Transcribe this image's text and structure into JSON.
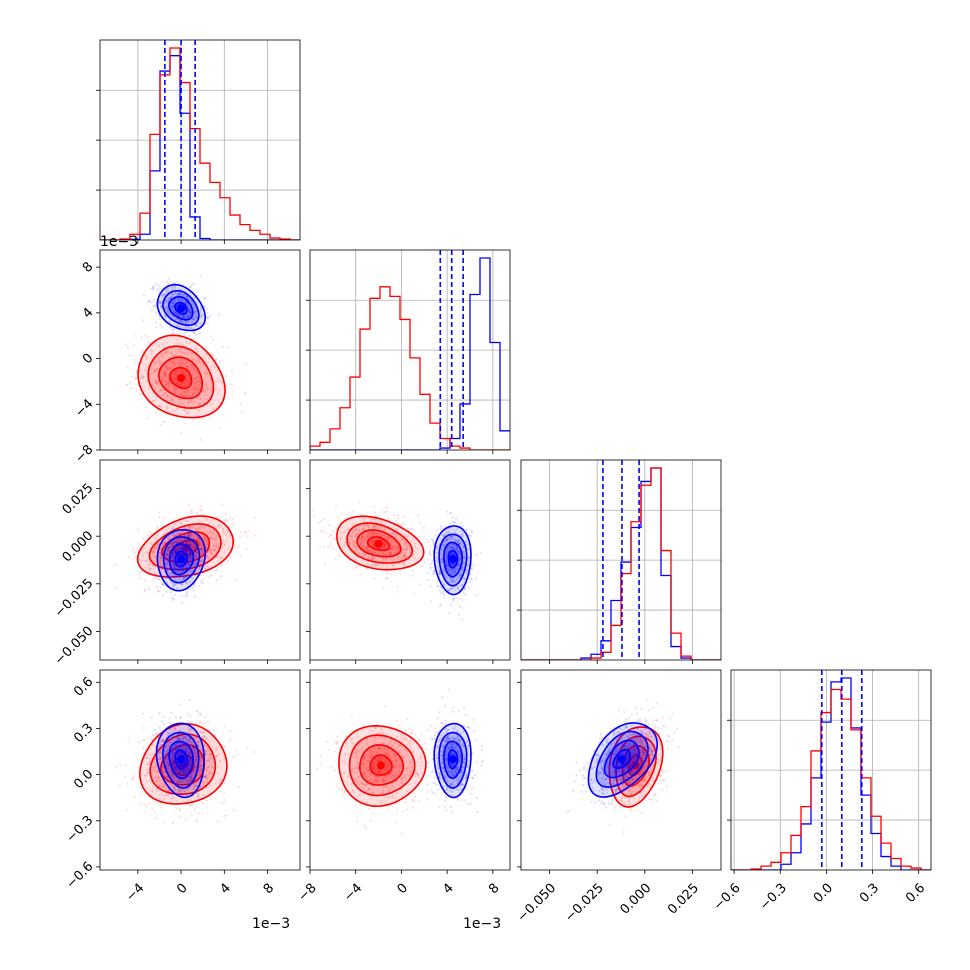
{
  "chart_data": {
    "type": "corner",
    "colors": {
      "blue": "#0000ff",
      "red": "#ff0000",
      "grid": "#b0b0b0"
    },
    "grid": true,
    "offset_texts": [
      "1e−3",
      "1e−3",
      "1e−3"
    ],
    "axes": [
      {
        "range": [
          -7.5,
          11
        ],
        "ticks": [
          -4,
          0,
          4,
          8
        ],
        "tick_labels": [
          "−4",
          "0",
          "4",
          "8"
        ]
      },
      {
        "range": [
          -8,
          9.5
        ],
        "ticks": [
          -8,
          -4,
          0,
          4,
          8
        ],
        "tick_labels": [
          "−8",
          "−4",
          "0",
          "4",
          "8"
        ]
      },
      {
        "range": [
          -0.065,
          0.04
        ],
        "ticks": [
          -0.05,
          -0.025,
          0,
          0.025
        ],
        "tick_labels": [
          "−0.050",
          "−0.025",
          "0.000",
          "0.025"
        ]
      },
      {
        "range": [
          -0.62,
          0.68
        ],
        "ticks": [
          -0.6,
          -0.3,
          0,
          0.3,
          0.6
        ],
        "tick_labels": [
          "−0.6",
          "−0.3",
          "0.0",
          "0.3",
          "0.6"
        ]
      }
    ],
    "quantiles_blue": [
      [
        -1.5,
        0,
        1.3
      ],
      [
        3.4,
        4.4,
        5.4
      ],
      [
        -0.022,
        -0.012,
        -0.003
      ],
      [
        -0.03,
        0.1,
        0.23
      ]
    ],
    "histograms": [
      {
        "blue": {
          "range": [
            -7.5,
            11
          ],
          "bins": 20,
          "counts": [
            0,
            0,
            0,
            0.4,
            3,
            36,
            88,
            96,
            66,
            12,
            0.8,
            0,
            0,
            0,
            0,
            0,
            0,
            0,
            0,
            0
          ]
        },
        "red": {
          "range": [
            -7.5,
            11
          ],
          "bins": 20,
          "counts": [
            0,
            0,
            0.5,
            3,
            14,
            55,
            86,
            100,
            82,
            58,
            40,
            30,
            22,
            13,
            8,
            5,
            3,
            1,
            0.5,
            0
          ]
        }
      },
      {
        "blue": {
          "range": [
            -8,
            9.5
          ],
          "bins": 20,
          "counts": [
            0,
            0,
            0,
            0,
            0,
            0,
            0,
            0,
            0,
            0,
            0,
            0,
            0,
            1,
            6,
            24,
            81,
            100,
            56,
            10
          ]
        },
        "red": {
          "range": [
            -8,
            9.5
          ],
          "bins": 20,
          "counts": [
            2,
            4,
            11,
            22,
            38,
            63,
            79,
            85,
            80,
            68,
            48,
            29,
            14,
            6,
            2,
            1,
            0,
            0,
            0,
            0
          ]
        }
      },
      {
        "blue": {
          "range": [
            -0.065,
            0.04
          ],
          "bins": 20,
          "counts": [
            0,
            0,
            0,
            0,
            0,
            0,
            1,
            3,
            10,
            31,
            51,
            69,
            93,
            100,
            44,
            7,
            1,
            0,
            0,
            0
          ]
        },
        "red": {
          "range": [
            -0.065,
            0.04
          ],
          "bins": 20,
          "counts": [
            0,
            0,
            0,
            0,
            0,
            0,
            0,
            1,
            4,
            18,
            45,
            72,
            91,
            100,
            57,
            14,
            2,
            0,
            0,
            0
          ]
        }
      },
      {
        "blue": {
          "range": [
            -0.62,
            0.68
          ],
          "bins": 20,
          "counts": [
            0,
            0,
            0,
            0,
            0,
            3,
            9,
            24,
            48,
            77,
            98,
            100,
            74,
            39,
            19,
            7,
            2,
            0,
            0,
            0
          ]
        },
        "red": {
          "range": [
            -0.62,
            0.68
          ],
          "bins": 20,
          "counts": [
            0,
            0,
            0.5,
            2,
            4,
            9,
            18,
            33,
            62,
            82,
            94,
            89,
            73,
            48,
            28,
            14,
            6,
            2,
            1,
            0
          ]
        }
      }
    ],
    "scatter_2d": [
      {
        "row": 1,
        "col": 0,
        "blue": {
          "mean": [
            0,
            4.4
          ],
          "sd": [
            1.1,
            1.0
          ],
          "rho": -0.3
        },
        "red": {
          "mean": [
            0,
            -1.7
          ],
          "sd": [
            2.0,
            1.8
          ],
          "rho": -0.2
        }
      },
      {
        "row": 2,
        "col": 0,
        "blue": {
          "mean": [
            0,
            -0.012
          ],
          "sd": [
            1.1,
            0.008
          ],
          "rho": 0.1
        },
        "red": {
          "mean": [
            0.5,
            -0.006
          ],
          "sd": [
            2.2,
            0.008
          ],
          "rho": 0.3
        }
      },
      {
        "row": 2,
        "col": 1,
        "blue": {
          "mean": [
            4.5,
            -0.012
          ],
          "sd": [
            0.8,
            0.009
          ],
          "rho": 0
        },
        "red": {
          "mean": [
            -2,
            -0.004
          ],
          "sd": [
            1.9,
            0.007
          ],
          "rho": -0.3
        }
      },
      {
        "row": 3,
        "col": 0,
        "blue": {
          "mean": [
            0,
            0.1
          ],
          "sd": [
            1.1,
            0.12
          ],
          "rho": -0.1
        },
        "red": {
          "mean": [
            0.2,
            0.06
          ],
          "sd": [
            2.0,
            0.13
          ],
          "rho": 0.1
        }
      },
      {
        "row": 3,
        "col": 1,
        "blue": {
          "mean": [
            4.5,
            0.1
          ],
          "sd": [
            0.8,
            0.12
          ],
          "rho": 0
        },
        "red": {
          "mean": [
            -1.8,
            0.06
          ],
          "sd": [
            1.9,
            0.13
          ],
          "rho": 0
        }
      },
      {
        "row": 3,
        "col": 2,
        "blue": {
          "mean": [
            -0.012,
            0.1
          ],
          "sd": [
            0.009,
            0.12
          ],
          "rho": 0.45
        },
        "red": {
          "mean": [
            -0.005,
            0.06
          ],
          "sd": [
            0.007,
            0.13
          ],
          "rho": 0.25
        }
      }
    ],
    "contour_levels_sigma": [
      0.5,
      1.0,
      1.5,
      2.0
    ]
  }
}
